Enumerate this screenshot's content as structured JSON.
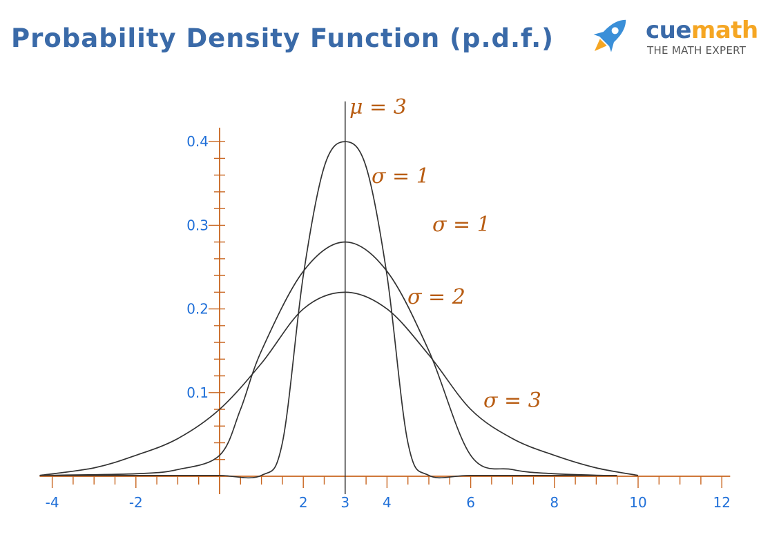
{
  "title": "Probability Density Function (p.d.f.)",
  "brand": {
    "name_part1": "cue",
    "name_part2": "math",
    "tagline": "THE MATH EXPERT",
    "colors": {
      "blue": "#3a6aa8",
      "orange": "#f5a623"
    }
  },
  "colors": {
    "axis": "#c8641e",
    "curve": "#333333",
    "tick_label": "#1f6fd8",
    "annotation": "#b85c12"
  },
  "chart_data": {
    "type": "line",
    "title": "Probability Density Function (p.d.f.)",
    "xlabel": "",
    "ylabel": "",
    "xlim": [
      -4.3,
      12.2
    ],
    "ylim": [
      0,
      0.45
    ],
    "grid": false,
    "x_tick_labels": [
      "-4",
      "-2",
      "2",
      "3",
      "4",
      "6",
      "8",
      "10",
      "12"
    ],
    "x_tick_values": [
      -4,
      -2,
      2,
      3,
      4,
      6,
      8,
      10,
      12
    ],
    "y_tick_labels": [
      "0.4",
      "0.3",
      "0.2",
      "0.1"
    ],
    "y_tick_values": [
      0.4,
      0.3,
      0.2,
      0.1
    ],
    "mean_line": {
      "x": 3,
      "label": "μ = 3"
    },
    "series": [
      {
        "values_x": [
          -4,
          -1,
          0,
          1,
          1.5,
          2,
          2.5,
          3,
          3.5,
          4,
          4.5,
          5,
          6,
          8,
          9.5
        ],
        "values_y": [
          0.001,
          0.001,
          0.001,
          0.001,
          0.04,
          0.24,
          0.37,
          0.4,
          0.37,
          0.24,
          0.04,
          0.001,
          0.001,
          0.001,
          0.001
        ]
      },
      {
        "values_x": [
          -4.3,
          -2,
          -1,
          0,
          0.5,
          1,
          2,
          3,
          4,
          5,
          6,
          7,
          8,
          9.2
        ],
        "values_y": [
          0.001,
          0.003,
          0.008,
          0.025,
          0.08,
          0.15,
          0.245,
          0.28,
          0.245,
          0.15,
          0.025,
          0.008,
          0.003,
          0.001
        ]
      },
      {
        "values_x": [
          -4.3,
          -3,
          -2,
          -1,
          0,
          1,
          2,
          3,
          4,
          5,
          6,
          7,
          8,
          9,
          10
        ],
        "values_y": [
          0.001,
          0.01,
          0.025,
          0.045,
          0.08,
          0.135,
          0.2,
          0.22,
          0.2,
          0.145,
          0.08,
          0.045,
          0.025,
          0.01,
          0.001
        ]
      }
    ],
    "annotations": [
      "σ = 1",
      "σ = 1",
      "σ = 2",
      "σ = 3"
    ]
  }
}
